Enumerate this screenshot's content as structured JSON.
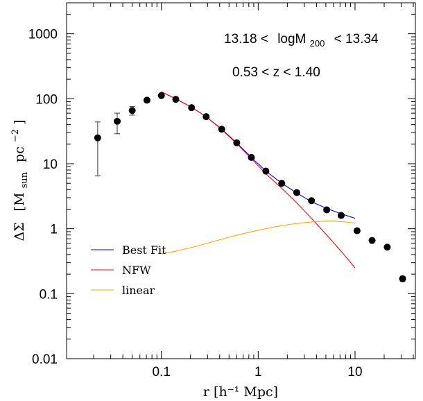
{
  "chart_data": {
    "type": "scatter",
    "title": "",
    "xlabel": "r [h⁻¹ Mpc]",
    "ylabel": "ΔΣ [M_sun pc⁻²]",
    "ylabel_prefix": "ΔΣ",
    "ylabel_unit_open": "[M",
    "ylabel_unit_sub": "sun",
    "ylabel_unit_mid": "pc",
    "ylabel_unit_sup": "−2",
    "ylabel_unit_close": "]",
    "x_scale": "log",
    "y_scale": "log",
    "xlim": [
      0.0105,
      42
    ],
    "ylim": [
      0.01,
      3000
    ],
    "x_ticks": [
      {
        "value": 0.1,
        "label": "0.1"
      },
      {
        "value": 1,
        "label": "1"
      },
      {
        "value": 10,
        "label": "10"
      }
    ],
    "y_ticks": [
      {
        "value": 0.01,
        "label": "0.01"
      },
      {
        "value": 0.1,
        "label": "0.1"
      },
      {
        "value": 1,
        "label": "1"
      },
      {
        "value": 10,
        "label": "10"
      },
      {
        "value": 100,
        "label": "100"
      },
      {
        "value": 1000,
        "label": "1000"
      }
    ],
    "grid": false,
    "annotations": [
      "13.18 < logM₂₀₀ < 13.34",
      "0.53 < z < 1.40"
    ],
    "annotation_mass": {
      "lo": "13.18 <",
      "name": "logM",
      "sub": "200",
      "hi": "< 13.34"
    },
    "annotation_z": "0.53 < z < 1.40",
    "legend_position": "lower-left",
    "data_points": {
      "name": "",
      "color": "#000000",
      "points": [
        {
          "x": 0.022,
          "y": 25,
          "ylo": 6.5,
          "yhi": 44
        },
        {
          "x": 0.035,
          "y": 45,
          "ylo": 29,
          "yhi": 60
        },
        {
          "x": 0.05,
          "y": 66,
          "ylo": 56,
          "yhi": 76
        },
        {
          "x": 0.071,
          "y": 95,
          "ylo": 90,
          "yhi": 100
        },
        {
          "x": 0.1,
          "y": 112
        },
        {
          "x": 0.141,
          "y": 98
        },
        {
          "x": 0.205,
          "y": 73
        },
        {
          "x": 0.29,
          "y": 53
        },
        {
          "x": 0.42,
          "y": 34
        },
        {
          "x": 0.6,
          "y": 21
        },
        {
          "x": 0.85,
          "y": 12.5
        },
        {
          "x": 1.2,
          "y": 7.7
        },
        {
          "x": 1.75,
          "y": 5.0
        },
        {
          "x": 2.5,
          "y": 3.6
        },
        {
          "x": 3.55,
          "y": 2.7
        },
        {
          "x": 5.1,
          "y": 1.95
        },
        {
          "x": 7.2,
          "y": 1.6
        },
        {
          "x": 10.5,
          "y": 0.93
        },
        {
          "x": 15,
          "y": 0.66
        },
        {
          "x": 21.5,
          "y": 0.52
        },
        {
          "x": 31,
          "y": 0.17,
          "ylo": 0.155,
          "yhi": 0.185
        }
      ]
    },
    "series": [
      {
        "name": "Best Fit",
        "color": "#0000ff",
        "x": [
          0.1,
          0.141,
          0.205,
          0.29,
          0.42,
          0.6,
          0.85,
          1.2,
          1.75,
          2.5,
          3.55,
          5.1,
          7.2,
          10
        ],
        "values": [
          128,
          100,
          74,
          53,
          34,
          21,
          12.5,
          7.7,
          5.0,
          3.55,
          2.6,
          2.05,
          1.7,
          1.45
        ]
      },
      {
        "name": "NFW",
        "color": "#ff0000",
        "x": [
          0.1,
          0.141,
          0.205,
          0.29,
          0.42,
          0.6,
          0.85,
          1.2,
          1.75,
          2.5,
          3.55,
          5.1,
          7.2,
          10
        ],
        "values": [
          128,
          100,
          74,
          53,
          33.5,
          20.5,
          12,
          7.0,
          4.2,
          2.5,
          1.45,
          0.8,
          0.45,
          0.25
        ]
      },
      {
        "name": "linear",
        "color": "#ffa500",
        "x": [
          0.1,
          0.14,
          0.2,
          0.3,
          0.5,
          0.7,
          1,
          1.5,
          2,
          3,
          4,
          5,
          6,
          7,
          8,
          10
        ],
        "values": [
          0.41,
          0.45,
          0.51,
          0.6,
          0.74,
          0.84,
          0.95,
          1.07,
          1.15,
          1.24,
          1.29,
          1.31,
          1.31,
          1.29,
          1.27,
          1.22
        ]
      }
    ]
  }
}
